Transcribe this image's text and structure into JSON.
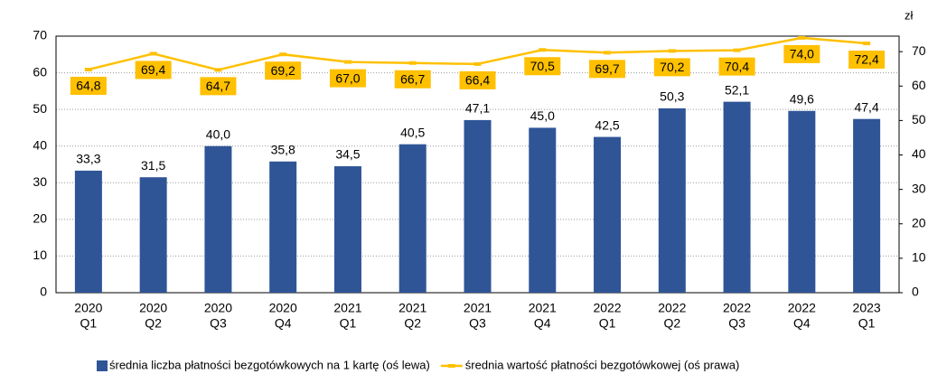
{
  "chart_data": {
    "type": "bar",
    "categories": [
      [
        "2020",
        "Q1"
      ],
      [
        "2020",
        "Q2"
      ],
      [
        "2020",
        "Q3"
      ],
      [
        "2020",
        "Q4"
      ],
      [
        "2021",
        "Q1"
      ],
      [
        "2021",
        "Q2"
      ],
      [
        "2021",
        "Q3"
      ],
      [
        "2021",
        "Q4"
      ],
      [
        "2022",
        "Q1"
      ],
      [
        "2022",
        "Q2"
      ],
      [
        "2022",
        "Q3"
      ],
      [
        "2022",
        "Q4"
      ],
      [
        "2023",
        "Q1"
      ]
    ],
    "series": [
      {
        "name": "średnia liczba płatności bezgotówkowych na 1 kartę (oś lewa)",
        "color": "#2f5597",
        "type": "bar",
        "values": [
          33.3,
          31.5,
          40.0,
          35.8,
          34.5,
          40.5,
          47.1,
          45.0,
          42.5,
          50.3,
          52.1,
          49.6,
          47.4
        ],
        "value_labels": [
          "33,3",
          "31,5",
          "40,0",
          "35,8",
          "34,5",
          "40,5",
          "47,1",
          "45,0",
          "42,5",
          "50,3",
          "52,1",
          "49,6",
          "47,4"
        ]
      },
      {
        "name": "średnia wartość  płatności bezgotówkowej (oś prawa)",
        "color": "#ffc000",
        "type": "line",
        "axis": "y2",
        "values": [
          64.8,
          69.4,
          64.7,
          69.2,
          67.0,
          66.7,
          66.4,
          70.5,
          69.7,
          70.2,
          70.4,
          74.0,
          72.4
        ],
        "value_labels": [
          "64,8",
          "69,4",
          "64,7",
          "69,2",
          "67,0",
          "66,7",
          "66,4",
          "70,5",
          "69,7",
          "70,2",
          "70,4",
          "74,0",
          "72,4"
        ]
      }
    ],
    "ylim": [
      0,
      70
    ],
    "yticks": [
      0,
      10,
      20,
      30,
      40,
      50,
      60,
      70
    ],
    "y2lim": [
      0,
      74.5
    ],
    "y2ticks": [
      0,
      10,
      20,
      30,
      40,
      50,
      60,
      70
    ],
    "y2label": "zł",
    "grid": true,
    "legend": "bottom"
  }
}
